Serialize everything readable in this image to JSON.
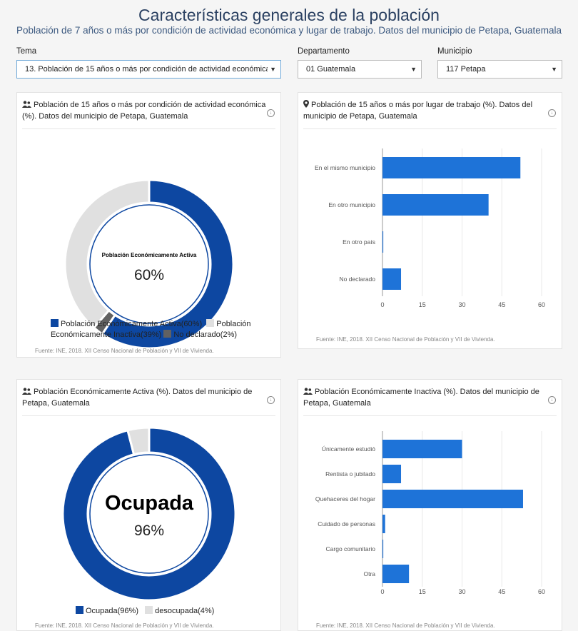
{
  "header": {
    "title": "Características generales de la población",
    "subtitle": "Población de 7 años o más por condición de actividad económica y lugar de trabajo. Datos del municipio de Petapa, Guatemala"
  },
  "filters": {
    "tema_label": "Tema",
    "tema_value": "13. Población de 15 años o más por condición de actividad económica",
    "departamento_label": "Departamento",
    "departamento_value": "01 Guatemala",
    "municipio_label": "Municipio",
    "municipio_value": "117 Petapa"
  },
  "colors": {
    "dark_blue": "#0d47a1",
    "bar_blue": "#1e73d8",
    "light_gray": "#e0e0e0",
    "dark_gray": "#616161"
  },
  "chart_data": [
    {
      "type": "pie",
      "title": "Población de 15 años o más por condición de actividad económica (%). Datos del municipio de Petapa, Guatemala",
      "icon": "people-icon",
      "center_label": "Población Económicamente Activa",
      "center_value": "60%",
      "slices": [
        {
          "label": "Población Económicamente Activa(60%)",
          "value": 60,
          "color": "#0d47a1"
        },
        {
          "label": "No declarado(2%)",
          "value": 2,
          "color": "#616161"
        },
        {
          "label": "Población Económicamente Inactiva(39%)",
          "value": 39,
          "color": "#e0e0e0"
        }
      ],
      "legend_items": [
        {
          "label": "Población Económicamente Activa(60%)",
          "color": "#0d47a1"
        },
        {
          "label": "Población Económicamente Inactiva(39%)",
          "color": "#e0e0e0"
        },
        {
          "label": "No declarado(2%)",
          "color": "#616161"
        }
      ],
      "source": "Fuente: INE, 2018. XII Censo Nacional de Población y VII de Vivienda."
    },
    {
      "type": "bar",
      "orientation": "horizontal",
      "title": "Población de 15 años o más por lugar de trabajo (%). Datos del municipio de Petapa, Guatemala",
      "icon": "location-pin-icon",
      "categories": [
        "En el mismo municipio",
        "En otro municipio",
        "En otro país",
        "No declarado"
      ],
      "values": [
        52,
        40,
        0.3,
        7
      ],
      "xlim": [
        0,
        60
      ],
      "ticks": [
        "0",
        "15",
        "30",
        "45",
        "60"
      ],
      "source": "Fuente: INE, 2018. XII Censo Nacional de Población y VII de Vivienda."
    },
    {
      "type": "pie",
      "title": "Población Económicamente Activa (%). Datos del municipio de Petapa, Guatemala",
      "icon": "people-icon",
      "center_label": "Ocupada",
      "center_value": "96%",
      "slices": [
        {
          "label": "Ocupada(96%)",
          "value": 96,
          "color": "#0d47a1"
        },
        {
          "label": "desocupada(4%)",
          "value": 4,
          "color": "#e0e0e0"
        }
      ],
      "legend_items": [
        {
          "label": "Ocupada(96%)",
          "color": "#0d47a1"
        },
        {
          "label": "desocupada(4%)",
          "color": "#e0e0e0"
        }
      ],
      "source": "Fuente: INE, 2018. XII Censo Nacional de Población y VII de Vivienda."
    },
    {
      "type": "bar",
      "orientation": "horizontal",
      "title": "Población Económicamente Inactiva (%). Datos del municipio de Petapa, Guatemala",
      "icon": "people-icon",
      "categories": [
        "Únicamente estudió",
        "Rentista o jubilado",
        "Quehaceres del hogar",
        "Cuidado de personas",
        "Cargo comunitario",
        "Otra"
      ],
      "values": [
        30,
        7,
        53,
        1,
        0.3,
        10
      ],
      "xlim": [
        0,
        60
      ],
      "ticks": [
        "0",
        "15",
        "30",
        "45",
        "60"
      ],
      "source": "Fuente: INE, 2018. XII Censo Nacional de Población y VII de Vivienda."
    }
  ]
}
